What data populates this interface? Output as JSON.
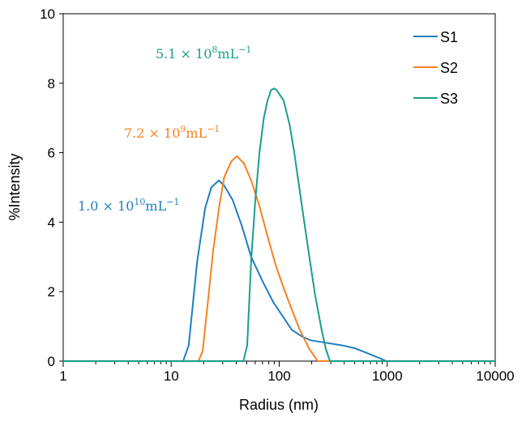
{
  "chart_data": {
    "type": "line",
    "title": "",
    "xlabel": "Radius (nm)",
    "ylabel": "%Intensity",
    "xscale": "log",
    "xlim": [
      1,
      10000
    ],
    "ylim": [
      0,
      10
    ],
    "xticks": [
      "1",
      "10",
      "100",
      "1000",
      "10000"
    ],
    "yticks": [
      "0",
      "2",
      "4",
      "6",
      "8",
      "10"
    ],
    "grid": false,
    "legend_placement": "top-right",
    "series": [
      {
        "name": "S1",
        "color": "#1f7ec1",
        "x": [
          1,
          12.9,
          14.5,
          17.4,
          20.6,
          23.5,
          27.6,
          31,
          37,
          45,
          55,
          70,
          88,
          110,
          131,
          160,
          195,
          280,
          388,
          500,
          617,
          800,
          980,
          10000
        ],
        "y": [
          0,
          0,
          0.45,
          2.87,
          4.4,
          5.0,
          5.2,
          5.05,
          4.64,
          3.9,
          3.0,
          2.3,
          1.7,
          1.25,
          0.9,
          0.72,
          0.6,
          0.52,
          0.45,
          0.37,
          0.26,
          0.12,
          0,
          0
        ]
      },
      {
        "name": "S2",
        "color": "#f5821f",
        "x": [
          1,
          17.9,
          19.6,
          22,
          24.5,
          28,
          31,
          36,
          40.5,
          47,
          55,
          65,
          78,
          92,
          110,
          130,
          155,
          190,
          228,
          10000
        ],
        "y": [
          0,
          0,
          0.3,
          1.8,
          3.2,
          4.5,
          5.3,
          5.75,
          5.9,
          5.7,
          5.2,
          4.5,
          3.6,
          2.8,
          2.1,
          1.5,
          0.9,
          0.35,
          0,
          0
        ]
      },
      {
        "name": "S3",
        "color": "#1a9e8a",
        "x": [
          1,
          46.5,
          50.5,
          55,
          60,
          65.6,
          72,
          78,
          84,
          89.5,
          95,
          110,
          125,
          138,
          160,
          185,
          215,
          247,
          270,
          295,
          10000
        ],
        "y": [
          0,
          0,
          0.45,
          2.9,
          4.6,
          6.0,
          7.0,
          7.5,
          7.8,
          7.85,
          7.8,
          7.5,
          6.8,
          6.0,
          4.6,
          3.25,
          1.9,
          0.9,
          0.35,
          0,
          0
        ]
      }
    ],
    "annotations": [
      {
        "series": "S1",
        "mantissa": "1.0 × 10",
        "exp": "10",
        "unit": "mL",
        "unit_exp": "−1"
      },
      {
        "series": "S2",
        "mantissa": "7.2 × 10",
        "exp": "9",
        "unit": "mL",
        "unit_exp": "−1"
      },
      {
        "series": "S3",
        "mantissa": "5.1 × 10",
        "exp": "8",
        "unit": "mL",
        "unit_exp": "−1"
      }
    ]
  }
}
